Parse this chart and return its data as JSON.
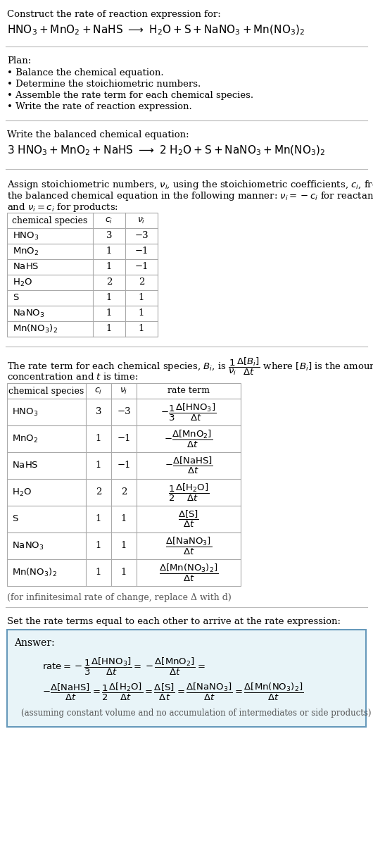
{
  "title_line1": "Construct the rate of reaction expression for:",
  "plan_header": "Plan:",
  "plan_items": [
    "• Balance the chemical equation.",
    "• Determine the stoichiometric numbers.",
    "• Assemble the rate term for each chemical species.",
    "• Write the rate of reaction expression."
  ],
  "balanced_header": "Write the balanced chemical equation:",
  "table1_rows": [
    [
      "HNO_3",
      "3",
      "−3"
    ],
    [
      "MnO_2",
      "1",
      "−1"
    ],
    [
      "NaHS",
      "1",
      "−1"
    ],
    [
      "H_2O",
      "2",
      "2"
    ],
    [
      "S",
      "1",
      "1"
    ],
    [
      "NaNO_3",
      "1",
      "1"
    ],
    [
      "Mn(NO_3)_2",
      "1",
      "1"
    ]
  ],
  "table2_rows": [
    [
      "HNO_3",
      "3",
      "−3"
    ],
    [
      "MnO_2",
      "1",
      "−1"
    ],
    [
      "NaHS",
      "1",
      "−1"
    ],
    [
      "H_2O",
      "2",
      "2"
    ],
    [
      "S",
      "1",
      "1"
    ],
    [
      "NaNO_3",
      "1",
      "1"
    ],
    [
      "Mn(NO_3)_2",
      "1",
      "1"
    ]
  ],
  "infinitesimal_note": "(for infinitesimal rate of change, replace Δ with d)",
  "set_rate_text": "Set the rate terms equal to each other to arrive at the rate expression:",
  "answer_label": "Answer:",
  "answer_note": "(assuming constant volume and no accumulation of intermediates or side products)",
  "answer_box_bg": "#e8f4f8",
  "answer_box_border": "#6699bb",
  "bg_color": "#ffffff",
  "line_color": "#bbbbbb",
  "table_color": "#aaaaaa",
  "note_color": "#555555"
}
